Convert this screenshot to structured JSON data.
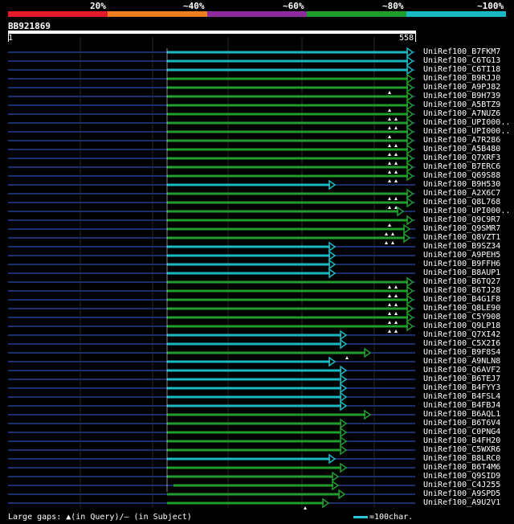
{
  "scale": {
    "labels": [
      "20%",
      "~40%",
      "~60%",
      "~80%",
      "~100%"
    ],
    "colors": [
      "#e31a2b",
      "#f07d1f",
      "#8e2b9e",
      "#1f9e2b",
      "#19b9c4"
    ]
  },
  "query": {
    "name": "BB921869",
    "start": "1",
    "end": "558"
  },
  "footer": {
    "gaps": "Large gaps: ▲(in Query)/— (in Subject)",
    "legend": "=100char."
  },
  "hits": [
    {
      "label": "UniRef100_B7FKM7",
      "identity": "~100%",
      "gaps": 0
    },
    {
      "label": "UniRef100_C6TG13",
      "identity": "~100%",
      "gaps": 0
    },
    {
      "label": "UniRef100_C6TI18",
      "identity": "~100%",
      "gaps": 0
    },
    {
      "label": "UniRef100_B9RJJ0",
      "identity": "~80%",
      "gaps": 0
    },
    {
      "label": "UniRef100_A9PJ82",
      "identity": "~80%",
      "gaps": 1
    },
    {
      "label": "UniRef100_B9H739",
      "identity": "~80%",
      "gaps": 0
    },
    {
      "label": "UniRef100_A5BTZ9",
      "identity": "~80%",
      "gaps": 1
    },
    {
      "label": "UniRef100_A7NUZ6",
      "identity": "~80%",
      "gaps": 2
    },
    {
      "label": "UniRef100_UPI000..",
      "identity": "~80%",
      "gaps": 2
    },
    {
      "label": "UniRef100_UPI000..",
      "identity": "~80%",
      "gaps": 1
    },
    {
      "label": "UniRef100_A7R286",
      "identity": "~80%",
      "gaps": 2
    },
    {
      "label": "UniRef100_A5B480",
      "identity": "~80%",
      "gaps": 2
    },
    {
      "label": "UniRef100_Q7XRF3",
      "identity": "~80%",
      "gaps": 2
    },
    {
      "label": "UniRef100_B7ERC6",
      "identity": "~80%",
      "gaps": 2
    },
    {
      "label": "UniRef100_Q69S88",
      "identity": "~80%",
      "gaps": 2
    },
    {
      "label": "UniRef100_B9H530",
      "identity": "~100%",
      "gaps": 0
    },
    {
      "label": "UniRef100_A2X6C7",
      "identity": "~80%",
      "gaps": 2
    },
    {
      "label": "UniRef100_Q8L768",
      "identity": "~80%",
      "gaps": 2
    },
    {
      "label": "UniRef100_UPI000..",
      "identity": "~80%",
      "gaps": 0
    },
    {
      "label": "UniRef100_Q9C9R7",
      "identity": "~80%",
      "gaps": 1
    },
    {
      "label": "UniRef100_Q9SMR7",
      "identity": "~80%",
      "gaps": 2
    },
    {
      "label": "UniRef100_Q8VZT1",
      "identity": "~80%",
      "gaps": 2
    },
    {
      "label": "UniRef100_B9SZ34",
      "identity": "~100%",
      "gaps": 0
    },
    {
      "label": "UniRef100_A9PEH5",
      "identity": "~100%",
      "gaps": 0
    },
    {
      "label": "UniRef100_B9FFH6",
      "identity": "~100%",
      "gaps": 0
    },
    {
      "label": "UniRef100_B8AUP1",
      "identity": "~100%",
      "gaps": 0
    },
    {
      "label": "UniRef100_B6TQ27",
      "identity": "~80%",
      "gaps": 2
    },
    {
      "label": "UniRef100_B6TJ28",
      "identity": "~80%",
      "gaps": 2
    },
    {
      "label": "UniRef100_B4G1F8",
      "identity": "~80%",
      "gaps": 2
    },
    {
      "label": "UniRef100_Q8LE90",
      "identity": "~80%",
      "gaps": 2
    },
    {
      "label": "UniRef100_C5Y908",
      "identity": "~80%",
      "gaps": 2
    },
    {
      "label": "UniRef100_Q9LP18",
      "identity": "~80%",
      "gaps": 2
    },
    {
      "label": "UniRef100_Q7XI42",
      "identity": "~100%",
      "gaps": 0
    },
    {
      "label": "UniRef100_C5X2I6",
      "identity": "~100%",
      "gaps": 0
    },
    {
      "label": "UniRef100_B9F8S4",
      "identity": "~80%",
      "gaps": 1
    },
    {
      "label": "UniRef100_A9NLN8",
      "identity": "~100%",
      "gaps": 0
    },
    {
      "label": "UniRef100_Q6AVF2",
      "identity": "~100%",
      "gaps": 0
    },
    {
      "label": "UniRef100_B6TEJ7",
      "identity": "~100%",
      "gaps": 0
    },
    {
      "label": "UniRef100_B4FYY3",
      "identity": "~100%",
      "gaps": 0
    },
    {
      "label": "UniRef100_B4FSL4",
      "identity": "~100%",
      "gaps": 0
    },
    {
      "label": "UniRef100_B4FBJ4",
      "identity": "~100%",
      "gaps": 0
    },
    {
      "label": "UniRef100_B6AQL1",
      "identity": "~80%",
      "gaps": 0
    },
    {
      "label": "UniRef100_B6T6V4",
      "identity": "~80%",
      "gaps": 0
    },
    {
      "label": "UniRef100_C0PNG4",
      "identity": "~80%",
      "gaps": 0
    },
    {
      "label": "UniRef100_B4FH20",
      "identity": "~80%",
      "gaps": 0
    },
    {
      "label": "UniRef100_C5WXR6",
      "identity": "~80%",
      "gaps": 0
    },
    {
      "label": "UniRef100_B8LRC0",
      "identity": "~100%",
      "gaps": 0
    },
    {
      "label": "UniRef100_B6T4M6",
      "identity": "~80%",
      "gaps": 0
    },
    {
      "label": "UniRef100_Q9SID9",
      "identity": "~80%",
      "gaps": 0
    },
    {
      "label": "UniRef100_C4J255",
      "identity": "~80%",
      "gaps": 0
    },
    {
      "label": "UniRef100_A9SPD5",
      "identity": "~80%",
      "gaps": 0
    },
    {
      "label": "UniRef100_A9U2V1",
      "identity": "~80%",
      "gaps": 1
    }
  ]
}
